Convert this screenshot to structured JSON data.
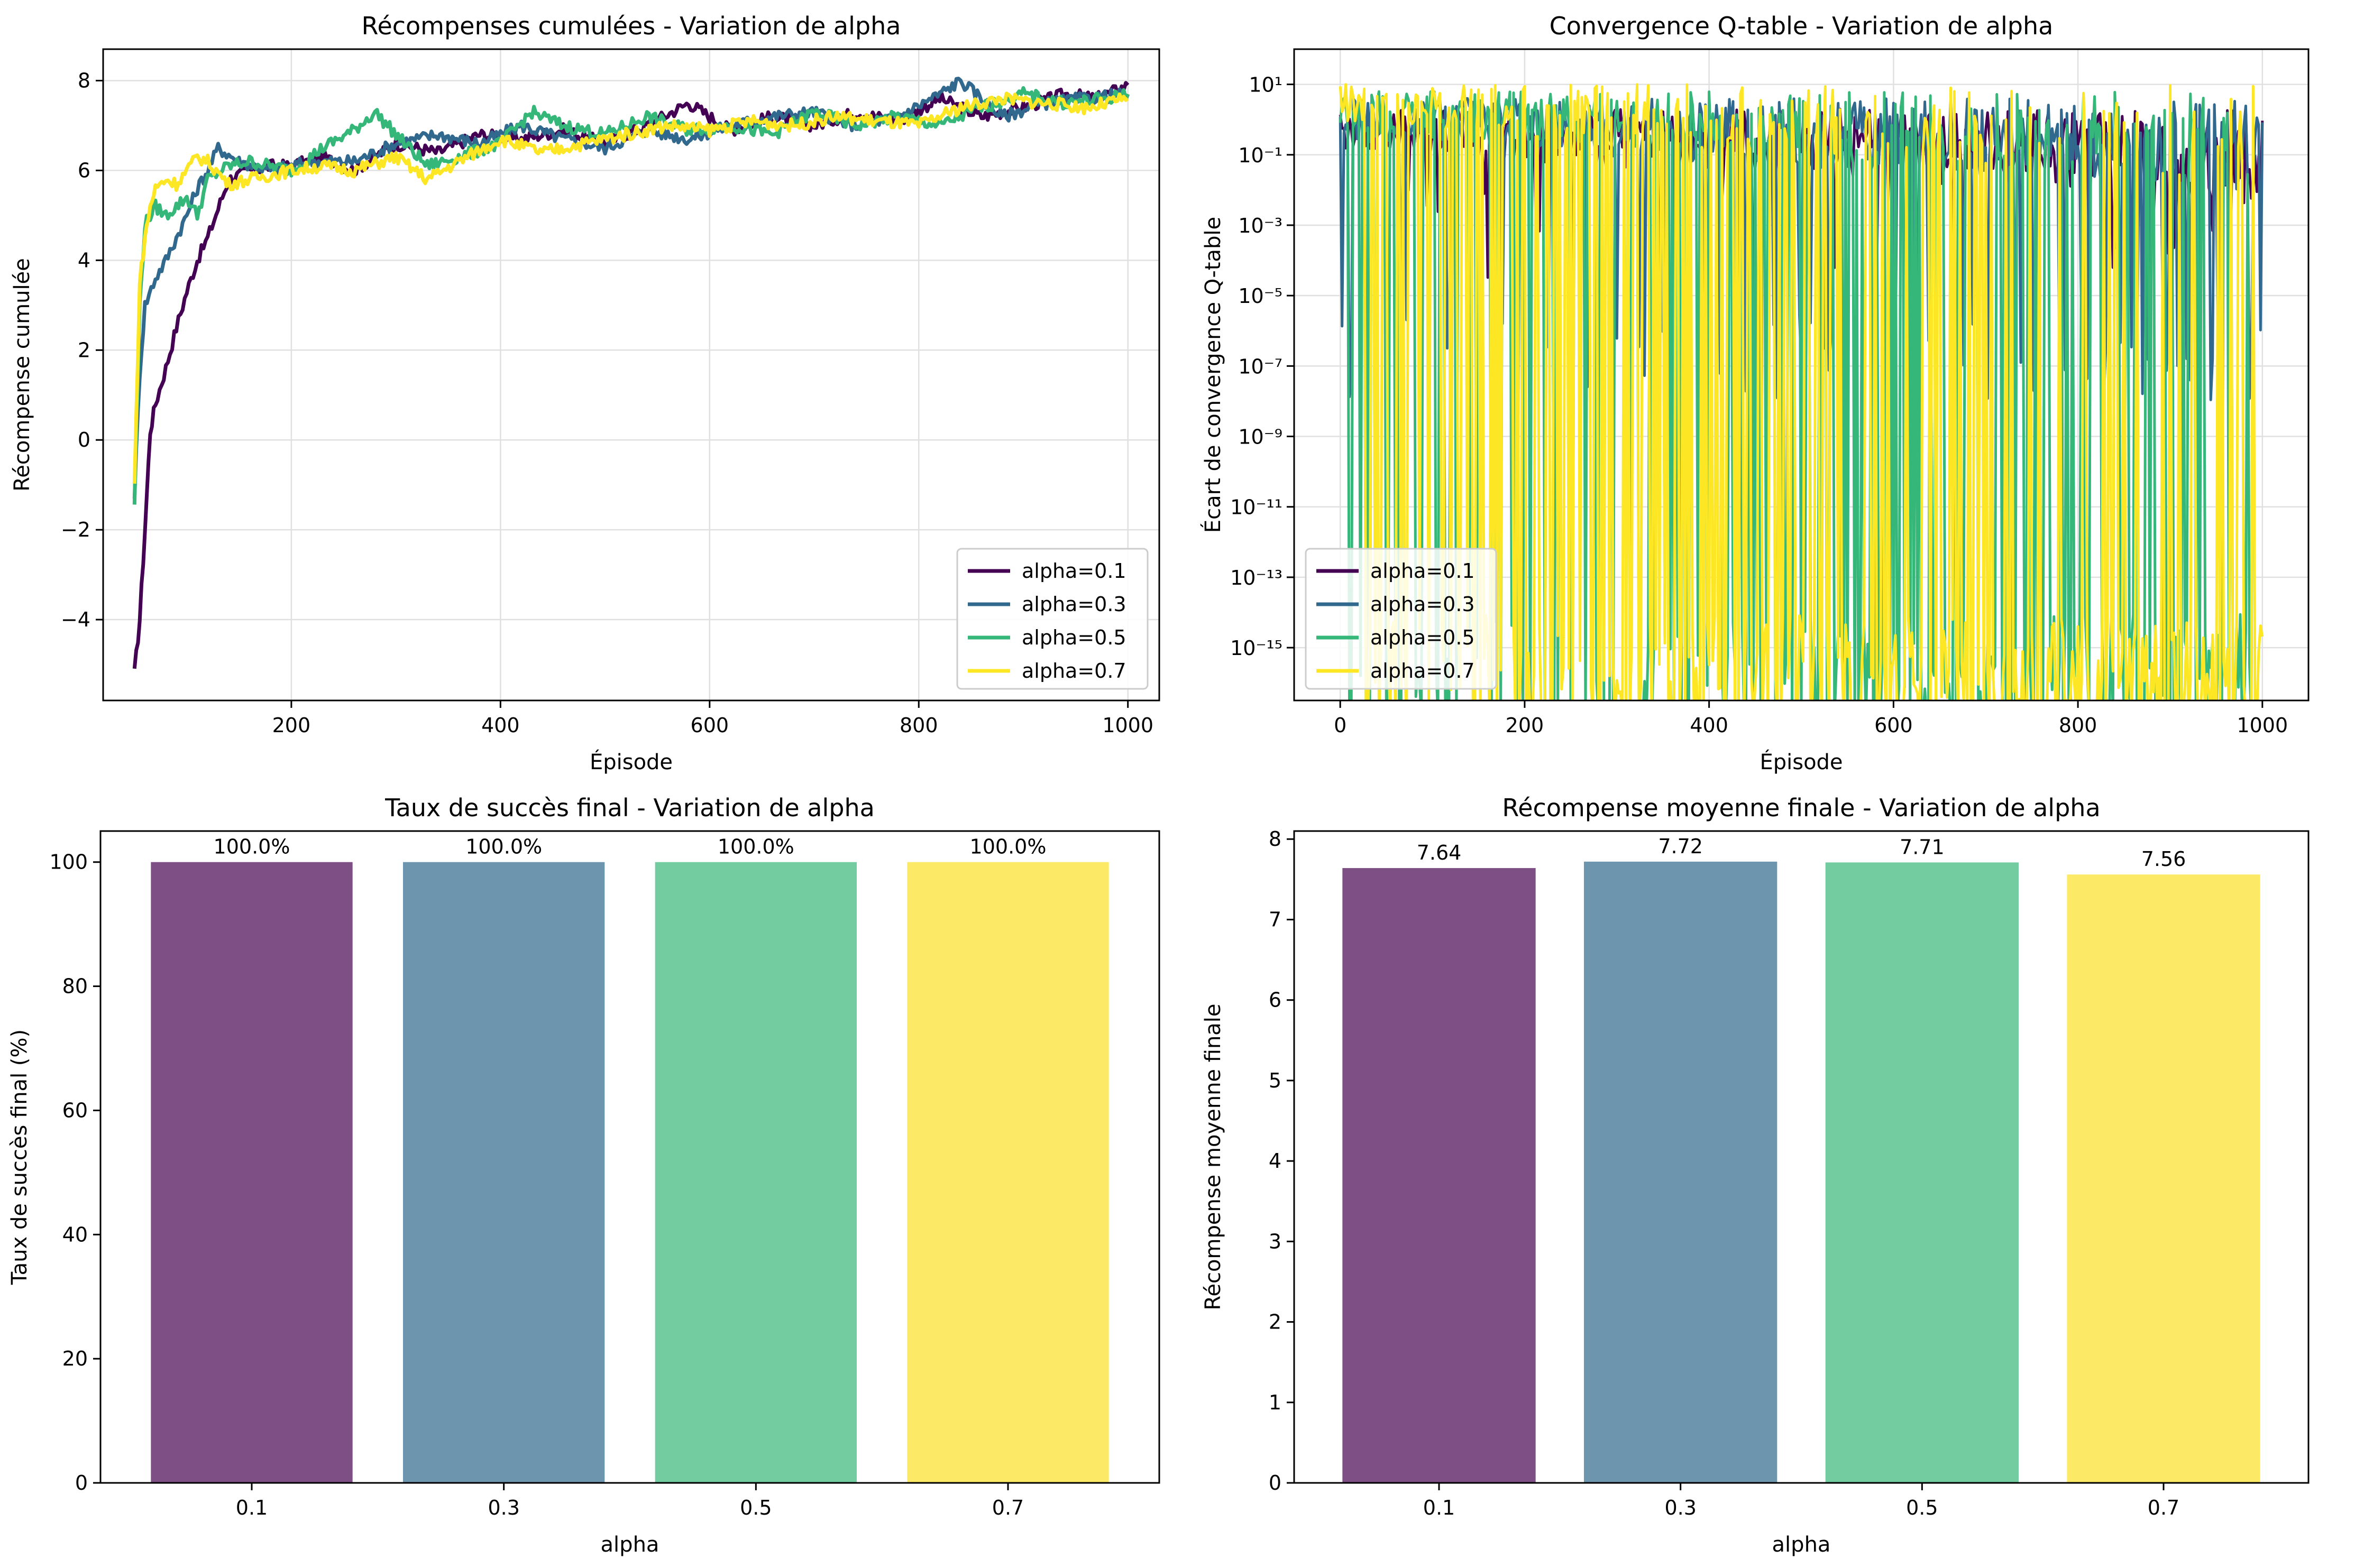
{
  "colors": {
    "alpha_0_1": "#440154",
    "alpha_0_3": "#31688e",
    "alpha_0_5": "#35b779",
    "alpha_0_7": "#fde725"
  },
  "chart_data": [
    {
      "type": "line",
      "title": "Récompenses cumulées - Variation de alpha",
      "xlabel": "Épisode",
      "ylabel": "Récompense cumulée",
      "xlim": [
        20,
        1030
      ],
      "ylim": [
        -5.8,
        8.7
      ],
      "xticks": [
        200,
        400,
        600,
        800,
        1000
      ],
      "yticks": [
        -4,
        -2,
        0,
        2,
        4,
        6,
        8
      ],
      "ytick_labels": [
        "−4",
        "−2",
        "0",
        "2",
        "4",
        "6",
        "8"
      ],
      "grid": true,
      "legend": "bottom-right",
      "series": [
        {
          "name": "alpha=0.1",
          "color": "#440154",
          "x": [
            50,
            55,
            60,
            65,
            70,
            80,
            90,
            100,
            110,
            120,
            140,
            160,
            180,
            200,
            230,
            260,
            300,
            340,
            380,
            420,
            460,
            500,
            540,
            580,
            620,
            660,
            700,
            740,
            780,
            820,
            860,
            900,
            940,
            970,
            1000
          ],
          "y": [
            -5.2,
            -4.0,
            -2.0,
            0.2,
            0.8,
            1.6,
            2.5,
            3.3,
            4.0,
            4.5,
            5.8,
            6.0,
            6.1,
            6.1,
            6.3,
            6.0,
            6.6,
            6.4,
            6.8,
            6.7,
            6.9,
            6.6,
            7.0,
            7.5,
            6.9,
            7.2,
            7.0,
            7.3,
            7.1,
            7.6,
            7.2,
            7.4,
            7.7,
            7.6,
            7.9
          ]
        },
        {
          "name": "alpha=0.3",
          "color": "#31688e",
          "x": [
            50,
            55,
            60,
            70,
            80,
            90,
            100,
            110,
            120,
            130,
            150,
            180,
            220,
            260,
            300,
            340,
            380,
            420,
            460,
            500,
            540,
            580,
            620,
            660,
            700,
            740,
            780,
            820,
            840,
            880,
            920,
            960,
            1000
          ],
          "y": [
            -1.2,
            1.5,
            3.0,
            3.6,
            4.0,
            4.5,
            5.0,
            5.6,
            6.0,
            6.5,
            6.2,
            6.0,
            6.2,
            6.2,
            6.6,
            6.8,
            6.6,
            7.0,
            6.7,
            6.5,
            6.9,
            6.7,
            7.0,
            7.2,
            7.3,
            7.0,
            7.2,
            7.7,
            8.0,
            7.2,
            7.5,
            7.6,
            7.7
          ]
        },
        {
          "name": "alpha=0.5",
          "color": "#35b779",
          "x": [
            50,
            55,
            60,
            65,
            70,
            80,
            90,
            100,
            110,
            120,
            140,
            160,
            200,
            230,
            260,
            280,
            300,
            330,
            360,
            400,
            430,
            460,
            500,
            540,
            580,
            620,
            660,
            700,
            740,
            780,
            820,
            860,
            900,
            940,
            980,
            1000
          ],
          "y": [
            -1.4,
            3.0,
            4.8,
            5.0,
            5.2,
            5.0,
            5.2,
            5.4,
            5.0,
            5.8,
            6.1,
            6.2,
            6.0,
            6.5,
            6.9,
            7.3,
            6.8,
            6.1,
            6.3,
            6.6,
            7.3,
            7.0,
            6.8,
            7.2,
            6.9,
            7.0,
            6.8,
            7.3,
            7.0,
            7.2,
            7.0,
            7.4,
            7.7,
            7.5,
            7.6,
            7.7
          ]
        },
        {
          "name": "alpha=0.7",
          "color": "#fde725",
          "x": [
            50,
            55,
            60,
            65,
            70,
            80,
            90,
            100,
            110,
            120,
            140,
            160,
            200,
            230,
            260,
            300,
            330,
            360,
            400,
            440,
            480,
            520,
            560,
            600,
            640,
            680,
            720,
            760,
            800,
            840,
            880,
            920,
            960,
            1000
          ],
          "y": [
            -1.0,
            3.5,
            4.5,
            5.2,
            5.6,
            5.8,
            5.7,
            6.0,
            6.3,
            6.2,
            5.7,
            5.8,
            6.0,
            6.1,
            6.0,
            6.3,
            5.8,
            6.2,
            6.7,
            6.4,
            6.6,
            6.8,
            7.0,
            6.9,
            7.1,
            7.0,
            7.2,
            7.1,
            7.0,
            7.4,
            7.6,
            7.5,
            7.4,
            7.6
          ]
        }
      ]
    },
    {
      "type": "line",
      "title": "Convergence Q-table - Variation de alpha",
      "xlabel": "Épisode",
      "ylabel": "Écart de convergence Q-table",
      "scale_y": "log",
      "xlim": [
        -50,
        1050
      ],
      "ylim_log10": [
        -16.5,
        2.0
      ],
      "xticks": [
        0,
        200,
        400,
        600,
        800,
        1000
      ],
      "ytick_exponents": [
        1,
        -1,
        -3,
        -5,
        -7,
        -9,
        -11,
        -13,
        -15
      ],
      "ytick_labels": [
        "10¹",
        "10⁻¹",
        "10⁻³",
        "10⁻⁵",
        "10⁻⁷",
        "10⁻⁹",
        "10⁻¹¹",
        "10⁻¹³",
        "10⁻¹⁵"
      ],
      "grid": true,
      "legend": "bottom-left",
      "series": [
        {
          "name": "alpha=0.1",
          "color": "#440154",
          "range_x": [
            0,
            1000
          ],
          "upper_log10": 0.3,
          "lower_log10": -4.5,
          "dip_prob": 0.08
        },
        {
          "name": "alpha=0.3",
          "color": "#31688e",
          "range_x": [
            0,
            1000
          ],
          "upper_log10": 0.6,
          "lower_log10": -8.0,
          "dip_prob": 0.2
        },
        {
          "name": "alpha=0.5",
          "color": "#35b779",
          "range_x": [
            0,
            990
          ],
          "upper_log10": 0.8,
          "lower_log10": -16.5,
          "dip_prob": 0.55
        },
        {
          "name": "alpha=0.7",
          "color": "#fde725",
          "range_x": [
            0,
            1000
          ],
          "upper_log10": 1.0,
          "lower_log10": -16.5,
          "dip_prob": 0.75
        }
      ]
    },
    {
      "type": "bar",
      "title": "Taux de succès final - Variation de alpha",
      "xlabel": "alpha",
      "ylabel": "Taux de succès final (%)",
      "categories": [
        "0.1",
        "0.3",
        "0.5",
        "0.7"
      ],
      "values": [
        100.0,
        100.0,
        100.0,
        100.0
      ],
      "data_labels": [
        "100.0%",
        "100.0%",
        "100.0%",
        "100.0%"
      ],
      "ylim": [
        0,
        105
      ],
      "yticks": [
        0,
        20,
        40,
        60,
        80,
        100
      ],
      "bar_colors": [
        "#7e4f85",
        "#6e95ae",
        "#72cca0",
        "#fcea66"
      ]
    },
    {
      "type": "bar",
      "title": "Récompense moyenne finale - Variation de alpha",
      "xlabel": "alpha",
      "ylabel": "Récompense moyenne finale",
      "categories": [
        "0.1",
        "0.3",
        "0.5",
        "0.7"
      ],
      "values": [
        7.64,
        7.72,
        7.71,
        7.56
      ],
      "data_labels": [
        "7.64",
        "7.72",
        "7.71",
        "7.56"
      ],
      "ylim": [
        0,
        8.1
      ],
      "yticks": [
        0,
        1,
        2,
        3,
        4,
        5,
        6,
        7,
        8
      ],
      "bar_colors": [
        "#7e4f85",
        "#6e95ae",
        "#72cca0",
        "#fcea66"
      ]
    }
  ]
}
